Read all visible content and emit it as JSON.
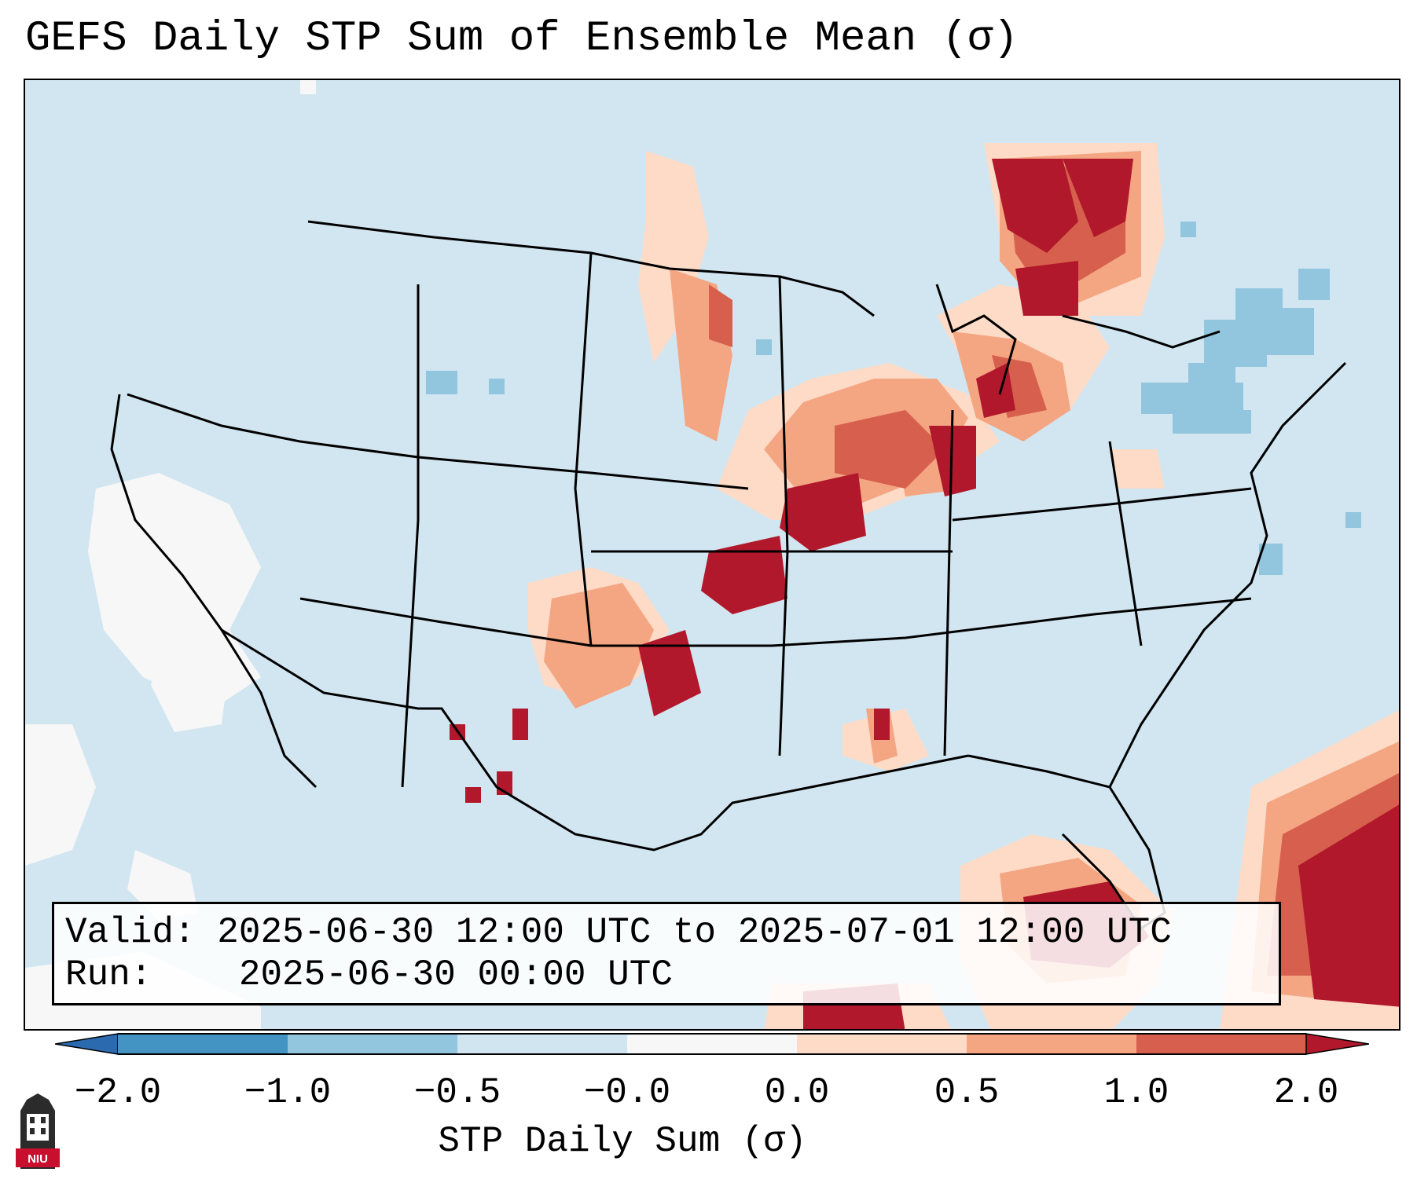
{
  "title": "GEFS Daily STP Sum of Ensemble Mean (σ)",
  "info": {
    "valid_label": "Valid:",
    "valid_value": "2025-06-30 12:00 UTC to 2025-07-01 12:00 UTC",
    "run_label": "Run:",
    "run_value": "2025-06-30 00:00 UTC"
  },
  "colorbar": {
    "label": "STP Daily Sum (σ)",
    "ticks": [
      "−2.0",
      "−1.0",
      "−0.5",
      "−0.0",
      "0.0",
      "0.5",
      "1.0",
      "2.0"
    ],
    "colors": {
      "extend_low": "#2c6ab0",
      "neg_2_to_1": "#4393c3",
      "neg_1_to_05": "#92c5de",
      "neg_05_to_0": "#d1e5f0",
      "zero": "#f7f7f7",
      "pos_0_to_05": "#fddbc7",
      "pos_05_to_1": "#f4a582",
      "pos_1_to_2": "#d6604d",
      "extend_high": "#b2182b"
    }
  },
  "logo": {
    "text": "NIU",
    "icon": "university-tower-icon"
  },
  "map": {
    "background": "#d2e6f1",
    "region": "Contiguous United States, southern Canada, northern Mexico, Gulf of Mexico, Caribbean",
    "high_anomaly_areas": [
      "Ontario / Quebec border",
      "Upper Midwest: Minnesota, Iowa, Wisconsin",
      "Illinois and Lake Michigan",
      "Michigan",
      "Missouri / eastern Kansas",
      "Oklahoma and Texas panhandle",
      "New Mexico",
      "Florida peninsula",
      "Western Atlantic / Bahamas",
      "Yucatán / Caribbean"
    ],
    "low_anomaly_areas": [
      "New England",
      "Southern Quebec",
      "Eastern Pacific near Baja California"
    ]
  }
}
